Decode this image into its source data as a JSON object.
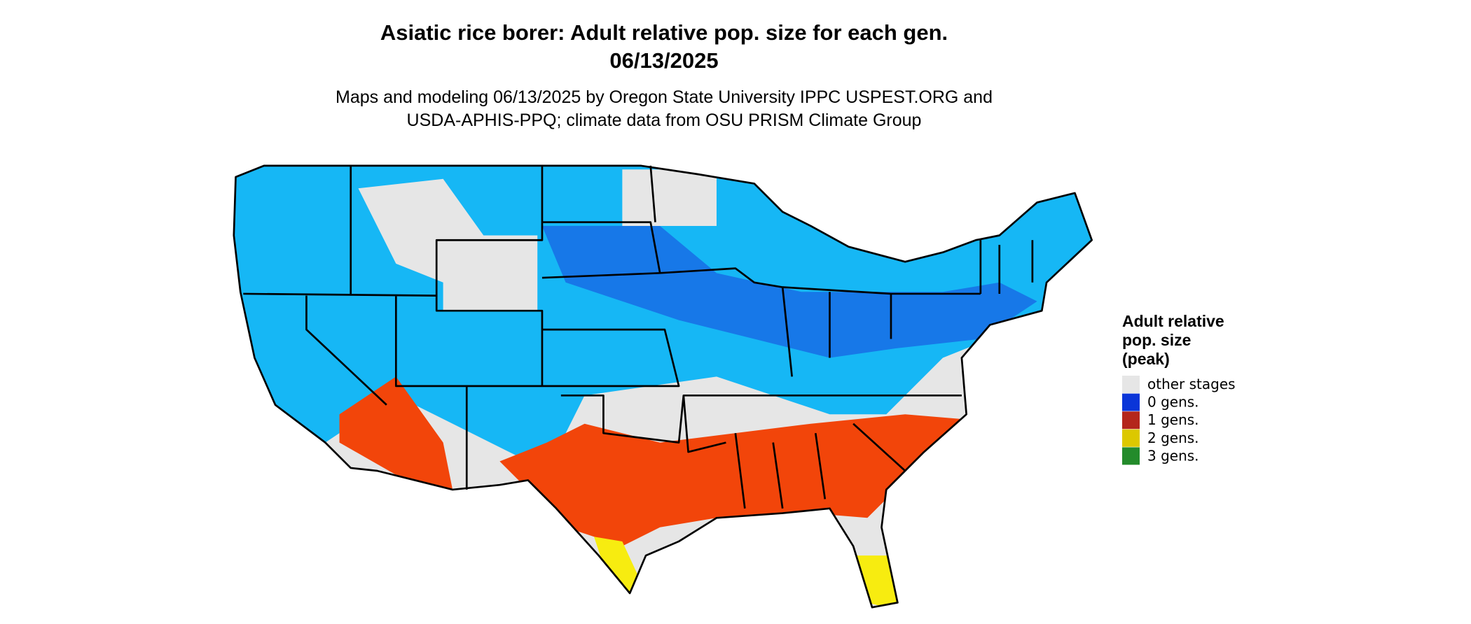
{
  "header": {
    "title": [
      "Asiatic rice borer: Adult relative pop. size for each gen.",
      "06/13/2025"
    ],
    "subtitle": [
      "Maps and modeling 06/13/2025 by Oregon State University IPPC USPEST.ORG and",
      "USDA-APHIS-PPQ; climate data from OSU PRISM Climate Group"
    ]
  },
  "legend": {
    "title": [
      "Adult relative",
      "pop. size",
      "(peak)"
    ],
    "items": [
      {
        "label": "other stages",
        "color": "#e6e6e6"
      },
      {
        "label": "0 gens.",
        "color": "#0a35d8"
      },
      {
        "label": "1 gens.",
        "color": "#b4261c"
      },
      {
        "label": "2 gens.",
        "color": "#dcc800"
      },
      {
        "label": "3 gens.",
        "color": "#238b2b"
      }
    ]
  }
}
